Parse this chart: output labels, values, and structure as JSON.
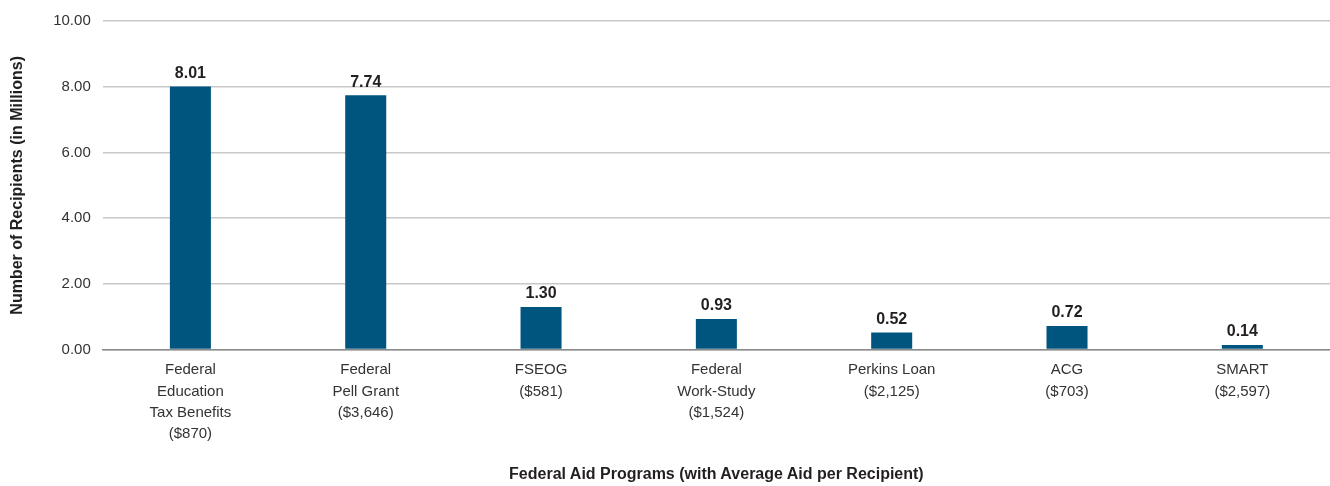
{
  "chart_data": {
    "type": "bar",
    "xlabel": "Federal Aid Programs (with Average Aid per Recipient)",
    "ylabel": "Number of Recipients (in Millions)",
    "categories": [
      "Federal\nEducation\nTax Benefits\n($870)",
      "Federal\nPell Grant\n($3,646)",
      "FSEOG\n($581)",
      "Federal\nWork-Study\n($1,524)",
      "Perkins Loan\n($2,125)",
      "ACG\n($703)",
      "SMART\n($2,597)"
    ],
    "values": [
      8.01,
      7.74,
      1.3,
      0.93,
      0.52,
      0.72,
      0.14
    ],
    "value_labels": [
      "8.01",
      "7.74",
      "1.30",
      "0.93",
      "0.52",
      "0.72",
      "0.14"
    ],
    "color": "#00557f",
    "ylim": [
      0,
      10
    ],
    "yticks": [
      {
        "value": 0,
        "label": "0.00"
      },
      {
        "value": 2,
        "label": "2.00"
      },
      {
        "value": 4,
        "label": "4.00"
      },
      {
        "value": 6,
        "label": "6.00"
      },
      {
        "value": 8,
        "label": "8.00"
      },
      {
        "value": 10,
        "label": "10.00"
      }
    ],
    "grid": "y"
  }
}
